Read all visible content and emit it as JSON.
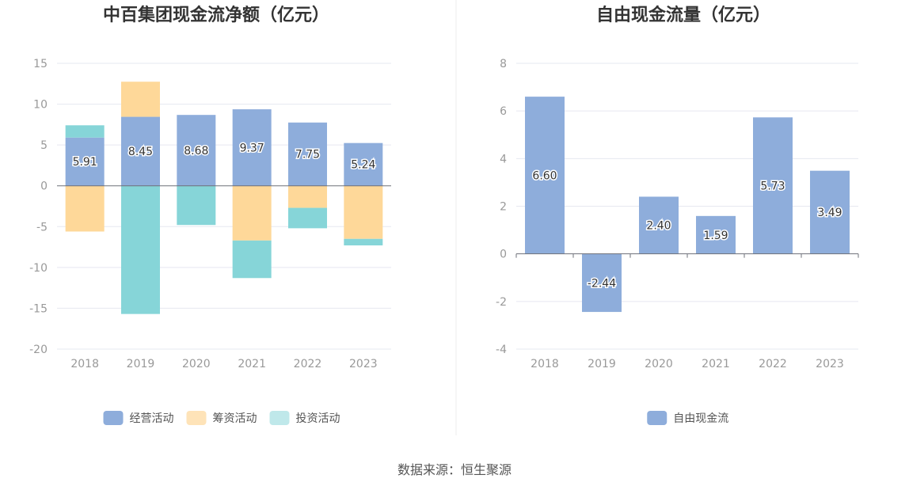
{
  "source_text": "数据来源：恒生聚源",
  "chart_data": [
    {
      "type": "bar",
      "stacked": true,
      "title": "中百集团现金流净额（亿元）",
      "categories": [
        "2018",
        "2019",
        "2020",
        "2021",
        "2022",
        "2023"
      ],
      "ylim": [
        -20,
        15
      ],
      "yticks": [
        15,
        10,
        5,
        0,
        -5,
        -10,
        -15,
        -20
      ],
      "series": [
        {
          "name": "经营活动",
          "color": "#8eaddb",
          "values": [
            5.91,
            8.45,
            8.68,
            9.37,
            7.75,
            5.24
          ],
          "show_labels": true
        },
        {
          "name": "筹资活动",
          "color": "#fed899",
          "values": [
            -5.6,
            4.3,
            0,
            -6.7,
            -2.7,
            -6.5
          ],
          "show_labels": false
        },
        {
          "name": "投资活动",
          "color": "#86d5d8",
          "values": [
            1.5,
            -15.7,
            -4.8,
            -4.6,
            -2.5,
            -0.8
          ],
          "show_labels": false
        }
      ],
      "legend_colors": [
        "#8eaddb",
        "#fee3b8",
        "#bfe8ea"
      ],
      "grid": true,
      "legend_position": "bottom"
    },
    {
      "type": "bar",
      "title": "自由现金流量（亿元）",
      "categories": [
        "2018",
        "2019",
        "2020",
        "2021",
        "2022",
        "2023"
      ],
      "ylim": [
        -4,
        8
      ],
      "yticks": [
        8,
        6,
        4,
        2,
        0,
        -2,
        -4
      ],
      "series": [
        {
          "name": "自由现金流",
          "color": "#8eaddb",
          "values": [
            6.6,
            -2.44,
            2.4,
            1.59,
            5.73,
            3.49
          ],
          "show_labels": true
        }
      ],
      "legend_colors": [
        "#8eaddb"
      ],
      "grid": true,
      "legend_position": "bottom"
    }
  ]
}
